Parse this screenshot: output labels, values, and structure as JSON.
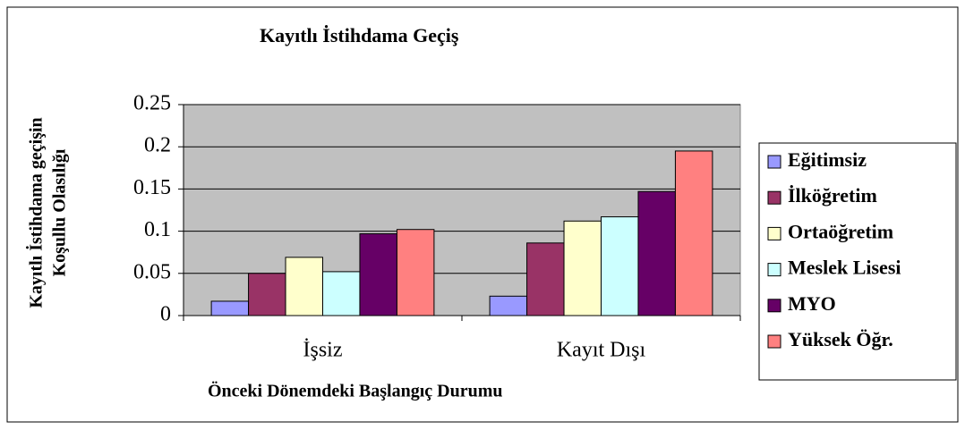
{
  "chart_data": {
    "type": "bar",
    "title": "Kayıtlı İstihdama Geçiş",
    "xlabel": "Önceki Dönemdeki Başlangıç Durumu",
    "ylabel": [
      "Kayıtlı İstihdama geçişin",
      "Koşullu Olasılığı"
    ],
    "categories": [
      "İşsiz",
      "Kayıt Dışı"
    ],
    "series": [
      {
        "name": "Eğitimsiz",
        "color": "#9999ff",
        "values": [
          0.017,
          0.023
        ]
      },
      {
        "name": "İlköğretim",
        "color": "#993366",
        "values": [
          0.05,
          0.086
        ]
      },
      {
        "name": "Ortaöğretim",
        "color": "#ffffcc",
        "values": [
          0.069,
          0.112
        ]
      },
      {
        "name": "Meslek Lisesi",
        "color": "#ccffff",
        "values": [
          0.052,
          0.117
        ]
      },
      {
        "name": "MYO",
        "color": "#660066",
        "values": [
          0.097,
          0.147
        ]
      },
      {
        "name": "Yüksek Öğr.",
        "color": "#ff8080",
        "values": [
          0.102,
          0.195
        ]
      }
    ],
    "ylim": [
      0,
      0.25
    ],
    "yticks": [
      0,
      0.05,
      0.1,
      0.15,
      0.2,
      0.25
    ],
    "grid": true,
    "legend": "right",
    "plot_background": "#c0c0c0"
  }
}
